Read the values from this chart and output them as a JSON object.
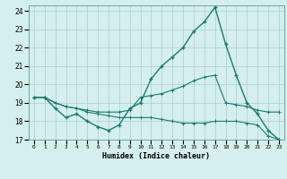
{
  "xlabel": "Humidex (Indice chaleur)",
  "background_color": "#d5efee",
  "grid_color": "#aed4d2",
  "line_color": "#1a7a6e",
  "xlim": [
    -0.5,
    23.5
  ],
  "ylim": [
    17,
    24.3
  ],
  "xtick_labels": [
    "0",
    "1",
    "2",
    "3",
    "4",
    "5",
    "6",
    "7",
    "8",
    "9",
    "10",
    "11",
    "12",
    "13",
    "14",
    "15",
    "16",
    "17",
    "18",
    "19",
    "20",
    "21",
    "22",
    "23"
  ],
  "yticks": [
    17,
    18,
    19,
    20,
    21,
    22,
    23,
    24
  ],
  "series1_x": [
    0,
    1,
    2,
    3,
    4,
    5,
    6,
    7,
    8,
    9,
    10,
    11,
    12,
    13,
    14,
    15,
    16,
    17,
    18,
    19,
    20,
    21,
    22,
    23
  ],
  "series1_y": [
    19.3,
    19.3,
    18.7,
    18.2,
    18.4,
    18.0,
    17.7,
    17.5,
    17.8,
    18.7,
    19.0,
    20.3,
    21.0,
    21.5,
    22.0,
    22.9,
    23.4,
    24.2,
    22.2,
    20.5,
    19.0,
    18.4,
    17.5,
    17.0
  ],
  "series2_x": [
    0,
    1,
    2,
    3,
    4,
    5,
    6,
    7,
    8,
    9,
    10,
    11,
    12,
    13,
    14,
    15,
    16,
    17,
    18,
    19,
    20,
    21,
    22,
    23
  ],
  "series2_y": [
    19.3,
    19.3,
    19.0,
    18.8,
    18.7,
    18.6,
    18.5,
    18.5,
    18.5,
    18.6,
    19.3,
    19.4,
    19.5,
    19.7,
    19.9,
    20.2,
    20.4,
    20.5,
    19.0,
    18.9,
    18.8,
    18.6,
    18.5,
    18.5
  ],
  "series3_x": [
    0,
    1,
    2,
    3,
    4,
    5,
    6,
    7,
    8,
    9,
    10,
    11,
    12,
    13,
    14,
    15,
    16,
    17,
    18,
    19,
    20,
    21,
    22,
    23
  ],
  "series3_y": [
    19.3,
    19.3,
    19.0,
    18.8,
    18.7,
    18.5,
    18.4,
    18.3,
    18.2,
    18.2,
    18.2,
    18.2,
    18.1,
    18.0,
    17.9,
    17.9,
    17.9,
    18.0,
    18.0,
    18.0,
    17.9,
    17.8,
    17.2,
    17.0
  ]
}
